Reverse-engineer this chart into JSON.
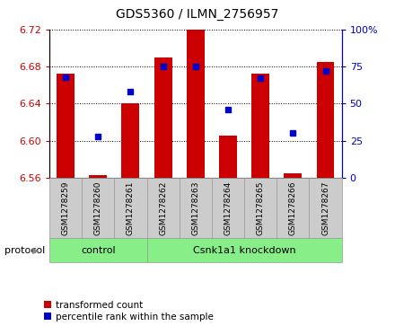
{
  "title": "GDS5360 / ILMN_2756957",
  "samples": [
    "GSM1278259",
    "GSM1278260",
    "GSM1278261",
    "GSM1278262",
    "GSM1278263",
    "GSM1278264",
    "GSM1278265",
    "GSM1278266",
    "GSM1278267"
  ],
  "bar_values": [
    6.672,
    6.563,
    6.64,
    6.69,
    6.72,
    6.605,
    6.672,
    6.565,
    6.685
  ],
  "dot_values": [
    68,
    28,
    58,
    75,
    75,
    46,
    67,
    30,
    72
  ],
  "y_min": 6.56,
  "y_max": 6.72,
  "y_ticks": [
    6.56,
    6.6,
    6.64,
    6.68,
    6.72
  ],
  "y2_ticks": [
    0,
    25,
    50,
    75,
    100
  ],
  "bar_color": "#cc0000",
  "dot_color": "#0000cc",
  "bar_bottom": 6.56,
  "control_label": "control",
  "knockdown_label": "Csnk1a1 knockdown",
  "protocol_label": "protocol",
  "legend_bar_label": "transformed count",
  "legend_dot_label": "percentile rank within the sample",
  "group_bg_color": "#88ee88",
  "tick_label_color_left": "#cc0000",
  "tick_label_color_right": "#0000cc",
  "sample_bg_color": "#cccccc",
  "sample_edge_color": "#999999"
}
